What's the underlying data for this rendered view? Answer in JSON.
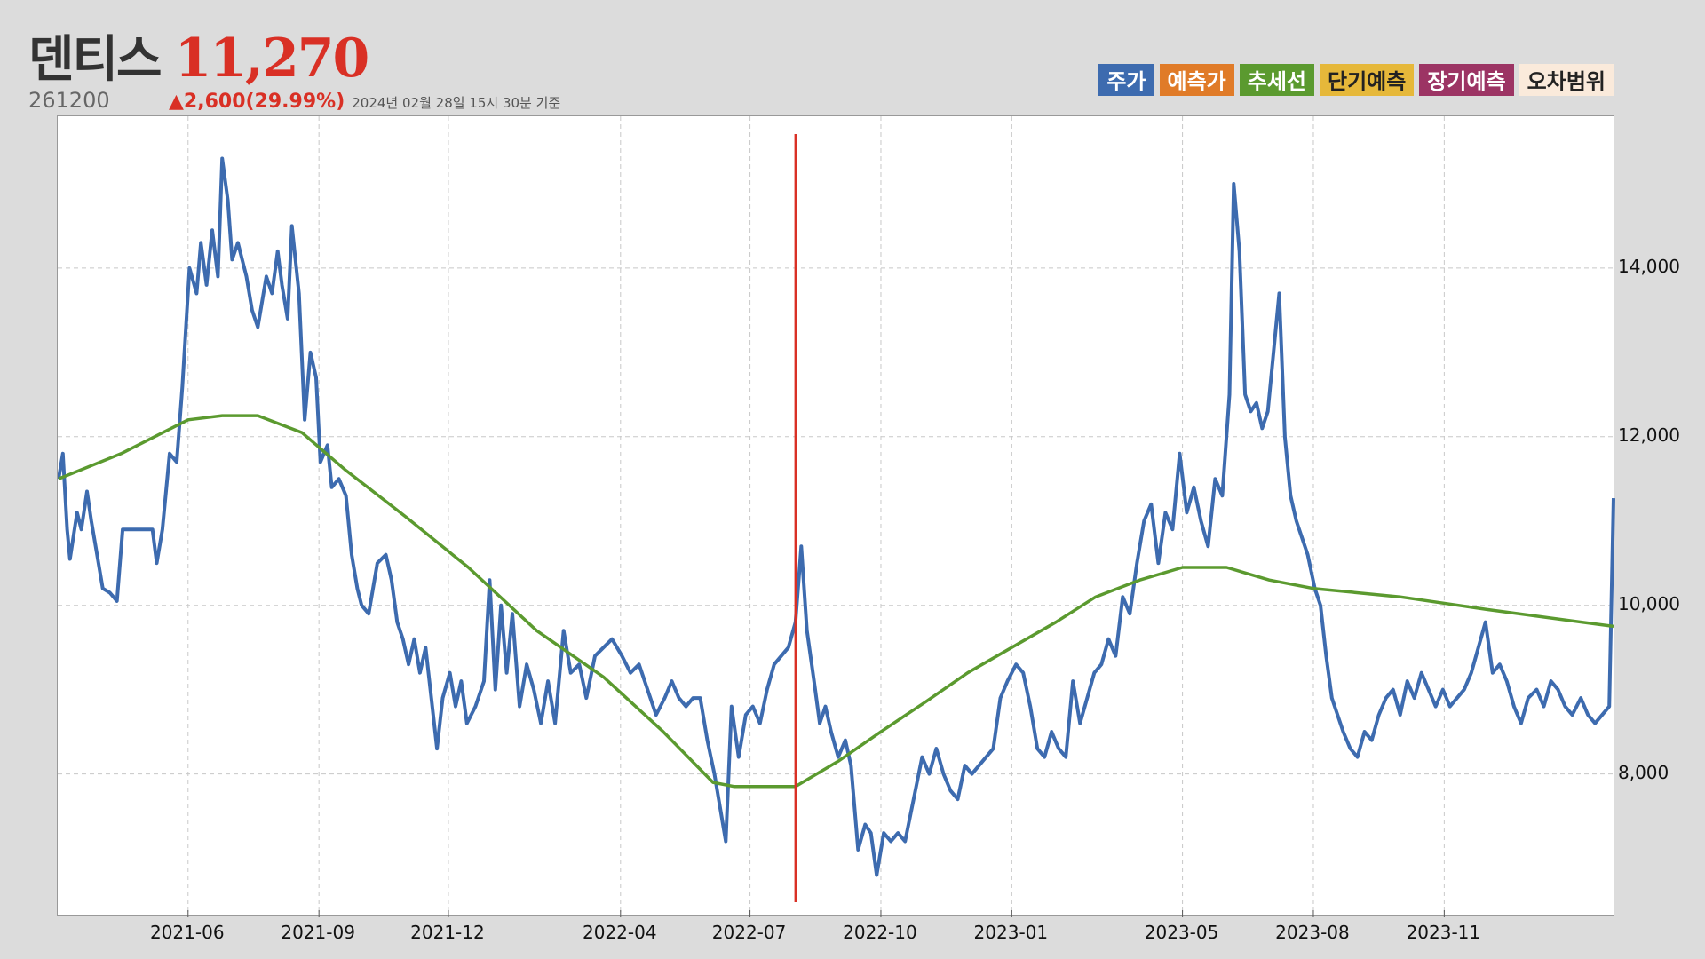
{
  "header": {
    "name": "덴티스",
    "price": "11,270",
    "code": "261200",
    "change": "▲2,600(29.99%)",
    "basis": "2024년 02월 28일 15시 30분 기준"
  },
  "legend": [
    {
      "label": "주가",
      "bg": "#3d6baf",
      "fg": "#ffffff"
    },
    {
      "label": "예측가",
      "bg": "#e07b28",
      "fg": "#ffffff"
    },
    {
      "label": "추세선",
      "bg": "#5b9a2f",
      "fg": "#ffffff"
    },
    {
      "label": "단기예측",
      "bg": "#e6b83a",
      "fg": "#222222"
    },
    {
      "label": "장기예측",
      "bg": "#9c3464",
      "fg": "#ffffff"
    },
    {
      "label": "오차범위",
      "bg": "#faeadb",
      "fg": "#222222"
    }
  ],
  "chart_data": {
    "type": "line",
    "title": "",
    "xlabel": "",
    "ylabel": "",
    "ylim": [
      6300,
      15800
    ],
    "xlim": [
      "2021-03-02",
      "2024-02-28"
    ],
    "x_ticks": [
      "2021-06",
      "2021-09",
      "2021-12",
      "2022-04",
      "2022-07",
      "2022-10",
      "2023-01",
      "2023-05",
      "2023-08",
      "2023-11"
    ],
    "y_ticks": [
      8000,
      10000,
      12000,
      14000
    ],
    "y_tick_labels": [
      "8,000",
      "10,000",
      "12,000",
      "14,000"
    ],
    "grid": true,
    "marker_date": "2022-08-02",
    "series": [
      {
        "name": "주가",
        "color": "#3d6baf",
        "points": [
          [
            "2021-03-02",
            11500
          ],
          [
            "2021-03-05",
            11800
          ],
          [
            "2021-03-08",
            10900
          ],
          [
            "2021-03-10",
            10550
          ],
          [
            "2021-03-15",
            11100
          ],
          [
            "2021-03-18",
            10900
          ],
          [
            "2021-03-22",
            11350
          ],
          [
            "2021-03-25",
            11000
          ],
          [
            "2021-03-29",
            10600
          ],
          [
            "2021-04-02",
            10200
          ],
          [
            "2021-04-07",
            10150
          ],
          [
            "2021-04-12",
            10050
          ],
          [
            "2021-04-16",
            10900
          ],
          [
            "2021-04-21",
            10900
          ],
          [
            "2021-04-27",
            10900
          ],
          [
            "2021-05-03",
            10900
          ],
          [
            "2021-05-07",
            10900
          ],
          [
            "2021-05-10",
            10500
          ],
          [
            "2021-05-14",
            10900
          ],
          [
            "2021-05-19",
            11800
          ],
          [
            "2021-05-24",
            11700
          ],
          [
            "2021-05-28",
            12600
          ],
          [
            "2021-06-02",
            14000
          ],
          [
            "2021-06-07",
            13700
          ],
          [
            "2021-06-10",
            14300
          ],
          [
            "2021-06-14",
            13800
          ],
          [
            "2021-06-18",
            14450
          ],
          [
            "2021-06-22",
            13900
          ],
          [
            "2021-06-25",
            15300
          ],
          [
            "2021-06-29",
            14800
          ],
          [
            "2021-07-02",
            14100
          ],
          [
            "2021-07-06",
            14300
          ],
          [
            "2021-07-12",
            13900
          ],
          [
            "2021-07-16",
            13500
          ],
          [
            "2021-07-20",
            13300
          ],
          [
            "2021-07-26",
            13900
          ],
          [
            "2021-07-30",
            13700
          ],
          [
            "2021-08-03",
            14200
          ],
          [
            "2021-08-06",
            13800
          ],
          [
            "2021-08-10",
            13400
          ],
          [
            "2021-08-13",
            14500
          ],
          [
            "2021-08-18",
            13700
          ],
          [
            "2021-08-22",
            12200
          ],
          [
            "2021-08-26",
            13000
          ],
          [
            "2021-08-30",
            12700
          ],
          [
            "2021-09-02",
            11700
          ],
          [
            "2021-09-07",
            11900
          ],
          [
            "2021-09-10",
            11400
          ],
          [
            "2021-09-15",
            11500
          ],
          [
            "2021-09-20",
            11300
          ],
          [
            "2021-09-24",
            10600
          ],
          [
            "2021-09-28",
            10200
          ],
          [
            "2021-10-01",
            10000
          ],
          [
            "2021-10-06",
            9900
          ],
          [
            "2021-10-12",
            10500
          ],
          [
            "2021-10-18",
            10600
          ],
          [
            "2021-10-22",
            10300
          ],
          [
            "2021-10-26",
            9800
          ],
          [
            "2021-10-30",
            9600
          ],
          [
            "2021-11-03",
            9300
          ],
          [
            "2021-11-07",
            9600
          ],
          [
            "2021-11-11",
            9200
          ],
          [
            "2021-11-15",
            9500
          ],
          [
            "2021-11-19",
            8900
          ],
          [
            "2021-11-23",
            8300
          ],
          [
            "2021-11-27",
            8900
          ],
          [
            "2021-12-02",
            9200
          ],
          [
            "2021-12-06",
            8800
          ],
          [
            "2021-12-10",
            9100
          ],
          [
            "2021-12-14",
            8600
          ],
          [
            "2021-12-20",
            8800
          ],
          [
            "2021-12-26",
            9100
          ],
          [
            "2021-12-30",
            10300
          ],
          [
            "2022-01-03",
            9000
          ],
          [
            "2022-01-07",
            10000
          ],
          [
            "2022-01-11",
            9200
          ],
          [
            "2022-01-15",
            9900
          ],
          [
            "2022-01-20",
            8800
          ],
          [
            "2022-01-25",
            9300
          ],
          [
            "2022-01-30",
            9000
          ],
          [
            "2022-02-04",
            8600
          ],
          [
            "2022-02-09",
            9100
          ],
          [
            "2022-02-14",
            8600
          ],
          [
            "2022-02-20",
            9700
          ],
          [
            "2022-02-25",
            9200
          ],
          [
            "2022-03-03",
            9300
          ],
          [
            "2022-03-08",
            8900
          ],
          [
            "2022-03-14",
            9400
          ],
          [
            "2022-03-20",
            9500
          ],
          [
            "2022-03-26",
            9600
          ],
          [
            "2022-04-02",
            9400
          ],
          [
            "2022-04-08",
            9200
          ],
          [
            "2022-04-14",
            9300
          ],
          [
            "2022-04-20",
            9000
          ],
          [
            "2022-04-26",
            8700
          ],
          [
            "2022-05-02",
            8900
          ],
          [
            "2022-05-07",
            9100
          ],
          [
            "2022-05-12",
            8900
          ],
          [
            "2022-05-17",
            8800
          ],
          [
            "2022-05-22",
            8900
          ],
          [
            "2022-05-27",
            8900
          ],
          [
            "2022-06-01",
            8400
          ],
          [
            "2022-06-06",
            8000
          ],
          [
            "2022-06-10",
            7600
          ],
          [
            "2022-06-14",
            7200
          ],
          [
            "2022-06-18",
            8800
          ],
          [
            "2022-06-23",
            8200
          ],
          [
            "2022-06-28",
            8700
          ],
          [
            "2022-07-03",
            8800
          ],
          [
            "2022-07-08",
            8600
          ],
          [
            "2022-07-13",
            9000
          ],
          [
            "2022-07-18",
            9300
          ],
          [
            "2022-07-23",
            9400
          ],
          [
            "2022-07-28",
            9500
          ],
          [
            "2022-08-02",
            9800
          ],
          [
            "2022-08-06",
            10700
          ],
          [
            "2022-08-10",
            9700
          ],
          [
            "2022-08-15",
            9100
          ],
          [
            "2022-08-19",
            8600
          ],
          [
            "2022-08-23",
            8800
          ],
          [
            "2022-08-27",
            8500
          ],
          [
            "2022-09-01",
            8200
          ],
          [
            "2022-09-06",
            8400
          ],
          [
            "2022-09-10",
            8100
          ],
          [
            "2022-09-15",
            7100
          ],
          [
            "2022-09-20",
            7400
          ],
          [
            "2022-09-24",
            7300
          ],
          [
            "2022-09-28",
            6800
          ],
          [
            "2022-10-03",
            7300
          ],
          [
            "2022-10-08",
            7200
          ],
          [
            "2022-10-13",
            7300
          ],
          [
            "2022-10-18",
            7200
          ],
          [
            "2022-10-24",
            7700
          ],
          [
            "2022-10-30",
            8200
          ],
          [
            "2022-11-04",
            8000
          ],
          [
            "2022-11-09",
            8300
          ],
          [
            "2022-11-14",
            8000
          ],
          [
            "2022-11-19",
            7800
          ],
          [
            "2022-11-24",
            7700
          ],
          [
            "2022-11-29",
            8100
          ],
          [
            "2022-12-04",
            8000
          ],
          [
            "2022-12-09",
            8100
          ],
          [
            "2022-12-14",
            8200
          ],
          [
            "2022-12-19",
            8300
          ],
          [
            "2022-12-24",
            8900
          ],
          [
            "2022-12-29",
            9100
          ],
          [
            "2023-01-04",
            9300
          ],
          [
            "2023-01-09",
            9200
          ],
          [
            "2023-01-14",
            8800
          ],
          [
            "2023-01-19",
            8300
          ],
          [
            "2023-01-24",
            8200
          ],
          [
            "2023-01-29",
            8500
          ],
          [
            "2023-02-03",
            8300
          ],
          [
            "2023-02-08",
            8200
          ],
          [
            "2023-02-13",
            9100
          ],
          [
            "2023-02-18",
            8600
          ],
          [
            "2023-02-23",
            8900
          ],
          [
            "2023-02-28",
            9200
          ],
          [
            "2023-03-05",
            9300
          ],
          [
            "2023-03-10",
            9600
          ],
          [
            "2023-03-15",
            9400
          ],
          [
            "2023-03-20",
            10100
          ],
          [
            "2023-03-25",
            9900
          ],
          [
            "2023-03-30",
            10500
          ],
          [
            "2023-04-04",
            11000
          ],
          [
            "2023-04-09",
            11200
          ],
          [
            "2023-04-14",
            10500
          ],
          [
            "2023-04-19",
            11100
          ],
          [
            "2023-04-24",
            10900
          ],
          [
            "2023-04-29",
            11800
          ],
          [
            "2023-05-04",
            11100
          ],
          [
            "2023-05-09",
            11400
          ],
          [
            "2023-05-14",
            11000
          ],
          [
            "2023-05-19",
            10700
          ],
          [
            "2023-05-24",
            11500
          ],
          [
            "2023-05-29",
            11300
          ],
          [
            "2023-06-03",
            12500
          ],
          [
            "2023-06-06",
            15000
          ],
          [
            "2023-06-10",
            14200
          ],
          [
            "2023-06-14",
            12500
          ],
          [
            "2023-06-18",
            12300
          ],
          [
            "2023-06-22",
            12400
          ],
          [
            "2023-06-26",
            12100
          ],
          [
            "2023-06-30",
            12300
          ],
          [
            "2023-07-04",
            13000
          ],
          [
            "2023-07-08",
            13700
          ],
          [
            "2023-07-12",
            12000
          ],
          [
            "2023-07-16",
            11300
          ],
          [
            "2023-07-20",
            11000
          ],
          [
            "2023-07-24",
            10800
          ],
          [
            "2023-07-28",
            10600
          ],
          [
            "2023-08-02",
            10200
          ],
          [
            "2023-08-06",
            10000
          ],
          [
            "2023-08-10",
            9400
          ],
          [
            "2023-08-14",
            8900
          ],
          [
            "2023-08-18",
            8700
          ],
          [
            "2023-08-22",
            8500
          ],
          [
            "2023-08-27",
            8300
          ],
          [
            "2023-09-01",
            8200
          ],
          [
            "2023-09-06",
            8500
          ],
          [
            "2023-09-11",
            8400
          ],
          [
            "2023-09-16",
            8700
          ],
          [
            "2023-09-21",
            8900
          ],
          [
            "2023-09-26",
            9000
          ],
          [
            "2023-10-01",
            8700
          ],
          [
            "2023-10-06",
            9100
          ],
          [
            "2023-10-11",
            8900
          ],
          [
            "2023-10-16",
            9200
          ],
          [
            "2023-10-21",
            9000
          ],
          [
            "2023-10-26",
            8800
          ],
          [
            "2023-10-31",
            9000
          ],
          [
            "2023-11-05",
            8800
          ],
          [
            "2023-11-10",
            8900
          ],
          [
            "2023-11-15",
            9000
          ],
          [
            "2023-11-20",
            9200
          ],
          [
            "2023-11-25",
            9500
          ],
          [
            "2023-11-30",
            9800
          ],
          [
            "2023-12-05",
            9200
          ],
          [
            "2023-12-10",
            9300
          ],
          [
            "2023-12-15",
            9100
          ],
          [
            "2023-12-20",
            8800
          ],
          [
            "2023-12-25",
            8600
          ],
          [
            "2023-12-30",
            8900
          ],
          [
            "2024-01-05",
            9000
          ],
          [
            "2024-01-10",
            8800
          ],
          [
            "2024-01-15",
            9100
          ],
          [
            "2024-01-20",
            9000
          ],
          [
            "2024-01-25",
            8800
          ],
          [
            "2024-01-30",
            8700
          ],
          [
            "2024-02-05",
            8900
          ],
          [
            "2024-02-10",
            8700
          ],
          [
            "2024-02-15",
            8600
          ],
          [
            "2024-02-20",
            8700
          ],
          [
            "2024-02-25",
            8800
          ],
          [
            "2024-02-28",
            11270
          ]
        ]
      },
      {
        "name": "추세선",
        "color": "#5b9a2f",
        "points": [
          [
            "2021-03-02",
            11500
          ],
          [
            "2021-04-15",
            11800
          ],
          [
            "2021-06-01",
            12200
          ],
          [
            "2021-06-25",
            12250
          ],
          [
            "2021-07-20",
            12250
          ],
          [
            "2021-08-20",
            12050
          ],
          [
            "2021-09-20",
            11600
          ],
          [
            "2021-11-01",
            11050
          ],
          [
            "2021-12-15",
            10450
          ],
          [
            "2022-02-01",
            9700
          ],
          [
            "2022-03-20",
            9150
          ],
          [
            "2022-05-01",
            8500
          ],
          [
            "2022-06-05",
            7900
          ],
          [
            "2022-06-20",
            7850
          ],
          [
            "2022-08-02",
            7850
          ],
          [
            "2022-09-01",
            8150
          ],
          [
            "2022-10-01",
            8500
          ],
          [
            "2022-11-01",
            8850
          ],
          [
            "2022-12-01",
            9200
          ],
          [
            "2023-01-01",
            9500
          ],
          [
            "2023-02-01",
            9800
          ],
          [
            "2023-03-01",
            10100
          ],
          [
            "2023-04-01",
            10300
          ],
          [
            "2023-05-01",
            10450
          ],
          [
            "2023-06-01",
            10450
          ],
          [
            "2023-07-01",
            10300
          ],
          [
            "2023-08-01",
            10200
          ],
          [
            "2023-10-01",
            10100
          ],
          [
            "2023-12-01",
            9950
          ],
          [
            "2024-02-28",
            9750
          ]
        ]
      }
    ]
  }
}
